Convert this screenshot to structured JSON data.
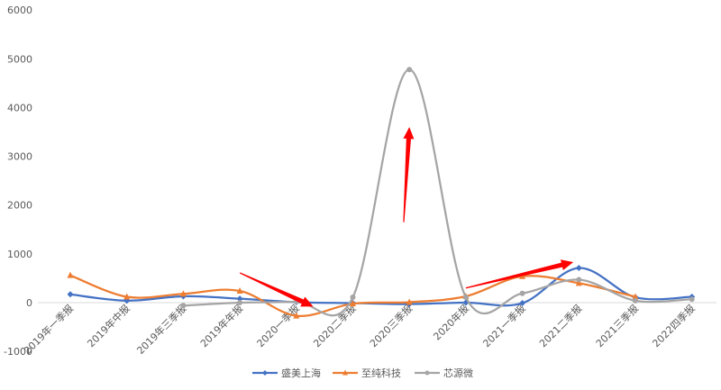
{
  "chart_data": {
    "type": "line",
    "title": "",
    "xlabel": "",
    "ylabel": "",
    "ylim": [
      -1000,
      6000
    ],
    "yticks": [
      -1000,
      0,
      1000,
      2000,
      3000,
      4000,
      5000,
      6000
    ],
    "ytick_labels": [
      "-1000",
      "0",
      "1000",
      "2000",
      "3000",
      "4000",
      "5000",
      "6000"
    ],
    "smooth": true,
    "grid": false,
    "legend_position": "bottom",
    "categories": [
      "2019年一季报",
      "2019年中报",
      "2019年三季报",
      "2019年年报",
      "2020一季报",
      "2020二季报",
      "2020三季报",
      "2020年报",
      "2021一季报",
      "2021二季报",
      "2021三季报",
      "2022四季报"
    ],
    "series": [
      {
        "name": "盛美上海",
        "color": "#4472C4",
        "marker": "diamond",
        "values": [
          170,
          40,
          130,
          80,
          10,
          -10,
          -30,
          0,
          -10,
          710,
          110,
          120
        ]
      },
      {
        "name": "至纯科技",
        "color": "#ED7D31",
        "marker": "triangle",
        "values": [
          560,
          120,
          180,
          240,
          -270,
          -20,
          10,
          130,
          540,
          400,
          120,
          null
        ]
      },
      {
        "name": "芯源微",
        "color": "#A5A5A5",
        "marker": "circle",
        "values": [
          null,
          null,
          -60,
          0,
          20,
          110,
          4780,
          110,
          190,
          470,
          40,
          70
        ]
      }
    ],
    "annotations": [
      {
        "type": "arrow",
        "color": "#FF0000",
        "from": [
          3.0,
          610
        ],
        "to": [
          4.3,
          -80
        ]
      },
      {
        "type": "arrow",
        "color": "#FF0000",
        "from": [
          5.9,
          1650
        ],
        "to": [
          6.0,
          3600
        ]
      },
      {
        "type": "arrow",
        "color": "#FF0000",
        "from": [
          7.0,
          300
        ],
        "to": [
          8.9,
          830
        ]
      }
    ]
  }
}
